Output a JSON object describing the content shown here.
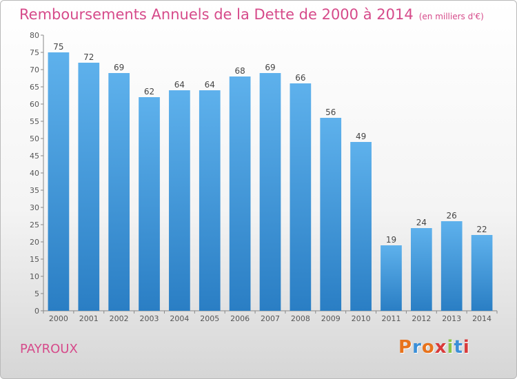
{
  "header": {
    "title": "Remboursements Annuels de la Dette de 2000 à 2014",
    "unit": "(en milliers d'€)"
  },
  "footer": {
    "commune": "PAYROUX",
    "brand": "Proxiti",
    "brand_colors": [
      "#e8731c",
      "#3a8fd8",
      "#e8731c",
      "#d93a3a",
      "#8bc34a",
      "#3a8fd8",
      "#d93a3a"
    ]
  },
  "chart_data": {
    "type": "bar",
    "categories": [
      "2000",
      "2001",
      "2002",
      "2003",
      "2004",
      "2005",
      "2006",
      "2007",
      "2008",
      "2009",
      "2010",
      "2011",
      "2012",
      "2013",
      "2014"
    ],
    "values": [
      75,
      72,
      69,
      62,
      64,
      64,
      68,
      69,
      66,
      56,
      49,
      19,
      24,
      26,
      22
    ],
    "title": "Remboursements Annuels de la Dette de 2000 à 2014",
    "ylim": [
      0,
      80
    ],
    "ytick_step": 5,
    "grid": false,
    "bar_color_top": "#5eb1ec",
    "bar_color_bottom": "#2a7ec4"
  }
}
